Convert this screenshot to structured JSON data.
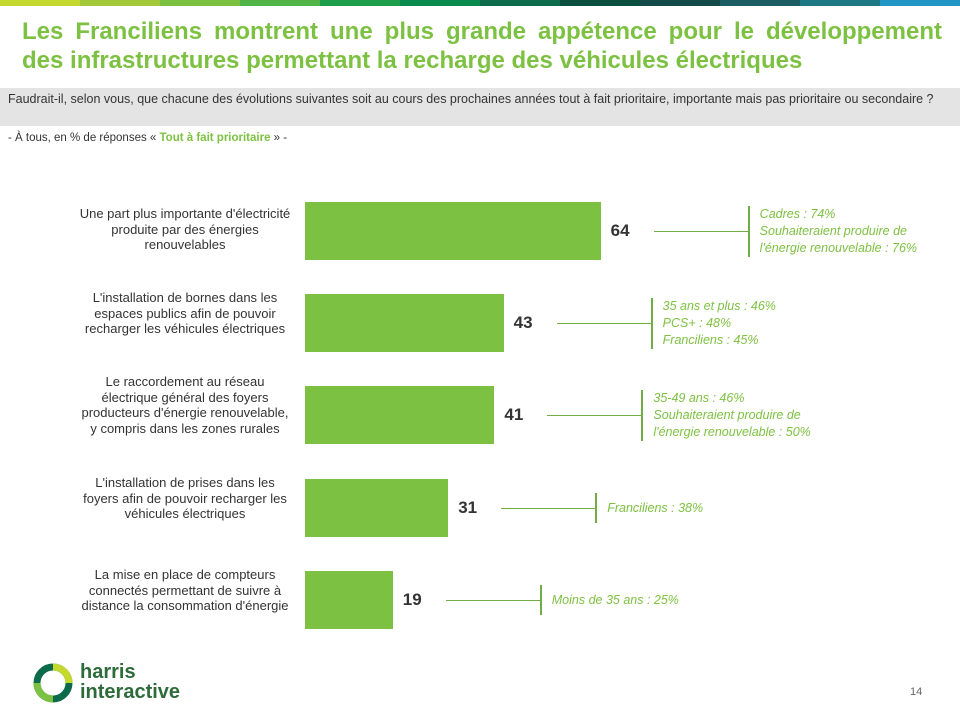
{
  "header": {
    "title": "Les Franciliens montrent une plus grande appétence pour le développement des infrastructures permettant la recharge des véhicules électriques",
    "question": "Faudrait-il, selon vous, que chacune des évolutions suivantes soit au cours des prochaines années tout à fait prioritaire, importante mais pas prioritaire ou secondaire ?",
    "base_prefix": "- À tous, en % de réponses « ",
    "base_highlight": "Tout à fait prioritaire",
    "base_suffix": " » -",
    "accent_color": "#7dc142",
    "topbar_colors": [
      "#c5d82e",
      "#a3c93a",
      "#7dc142",
      "#4fb548",
      "#1e9e4a",
      "#0b8a4f",
      "#0b6b4a",
      "#0a4f3f",
      "#134b4a",
      "#1a5e63",
      "#1d7884",
      "#2196c4"
    ]
  },
  "chart_data": {
    "type": "bar",
    "orientation": "horizontal",
    "categories": [
      "Une part plus importante d'électricité produite par des énergies renouvelables",
      "L'installation de bornes dans les espaces publics afin de pouvoir recharger les véhicules électriques",
      "Le raccordement au réseau électrique général des foyers producteurs d'énergie renouvelable, y compris dans les zones rurales",
      "L'installation de prises dans les foyers afin de pouvoir recharger les véhicules électriques",
      "La mise en place de compteurs connectés permettant de suivre à distance la consommation d'énergie"
    ],
    "values": [
      64,
      43,
      41,
      31,
      19
    ],
    "bar_color": "#7dc142",
    "annotations": [
      [
        "Cadres : 74%",
        "Souhaiteraient produire de",
        "l'énergie  renouvelable : 76%"
      ],
      [
        "35 ans et plus : 46%",
        "PCS+ : 48%",
        "Franciliens : 45%"
      ],
      [
        "35-49 ans : 46%",
        "Souhaiteraient produire de",
        "l'énergie  renouvelable : 50%"
      ],
      [
        "Franciliens : 38%"
      ],
      [
        "Moins de 35 ans : 25%"
      ]
    ]
  },
  "footer": {
    "logo_line1": "harris",
    "logo_line2": "interactive",
    "page_number": "14"
  }
}
